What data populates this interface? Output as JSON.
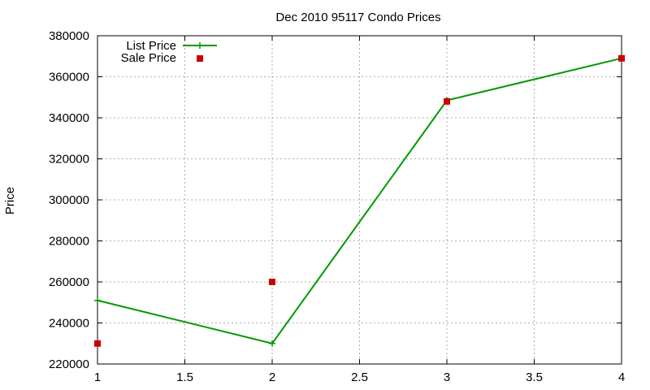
{
  "chart_data": {
    "type": "line",
    "title": "Dec 2010 95117 Condo Prices",
    "xlabel": "",
    "ylabel": "Price",
    "xlim": [
      1,
      4
    ],
    "ylim": [
      220000,
      380000
    ],
    "xticks": [
      1,
      1.5,
      2,
      2.5,
      3,
      3.5,
      4
    ],
    "xtick_labels": [
      "1",
      "1.5",
      "2",
      "2.5",
      "3",
      "3.5",
      "4"
    ],
    "yticks": [
      220000,
      240000,
      260000,
      280000,
      300000,
      320000,
      340000,
      360000,
      380000
    ],
    "ytick_labels": [
      "220000",
      "240000",
      "260000",
      "280000",
      "300000",
      "320000",
      "340000",
      "360000",
      "380000"
    ],
    "grid": true,
    "legend_position": "top-left",
    "series": [
      {
        "name": "List Price",
        "style": "line-with-plus-markers",
        "color": "#009900",
        "x": [
          1,
          2,
          3,
          4
        ],
        "y": [
          251000,
          230000,
          348500,
          369000
        ]
      },
      {
        "name": "Sale Price",
        "style": "square-markers",
        "color": "#cc0000",
        "x": [
          1,
          2,
          3,
          4
        ],
        "y": [
          230000,
          260000,
          348000,
          369000
        ]
      }
    ]
  }
}
